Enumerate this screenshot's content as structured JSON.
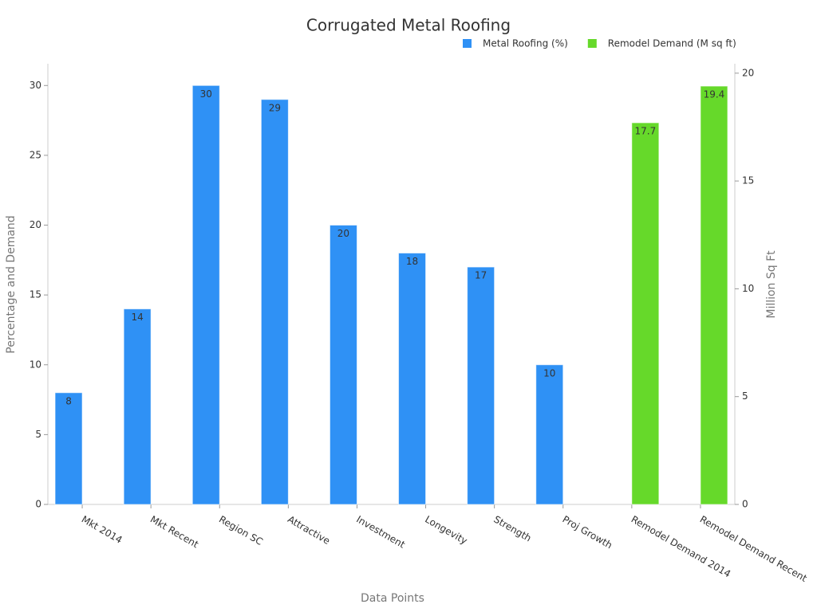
{
  "chart_data": {
    "type": "bar",
    "title": "Corrugated Metal Roofing",
    "categories": [
      "Mkt 2014",
      "Mkt Recent",
      "Region SC",
      "Attractive",
      "Investment",
      "Longevity",
      "Strength",
      "Proj Growth",
      "Remodel Demand 2014",
      "Remodel Demand Recent"
    ],
    "series": [
      {
        "name": "Metal Roofing (%)",
        "color": "#2f91f5",
        "values": [
          8,
          14,
          30,
          29,
          20,
          18,
          17,
          10,
          null,
          null
        ]
      },
      {
        "name": "Remodel Demand (M sq ft)",
        "color": "#66d92a",
        "axis": "y2",
        "values": [
          null,
          null,
          null,
          null,
          null,
          null,
          null,
          null,
          17.7,
          19.4
        ]
      }
    ],
    "xlabel": "Data Points",
    "ylabel": "Percentage and Demand",
    "y2label": "Million Sq Ft",
    "ylim": [
      0,
      31.5
    ],
    "yticks": [
      0,
      5,
      10,
      15,
      20,
      25,
      30
    ],
    "y2lim": [
      0,
      20.4
    ],
    "y2ticks": [
      0,
      5,
      10,
      15,
      20
    ],
    "legend": "top-right",
    "grid": false
  }
}
